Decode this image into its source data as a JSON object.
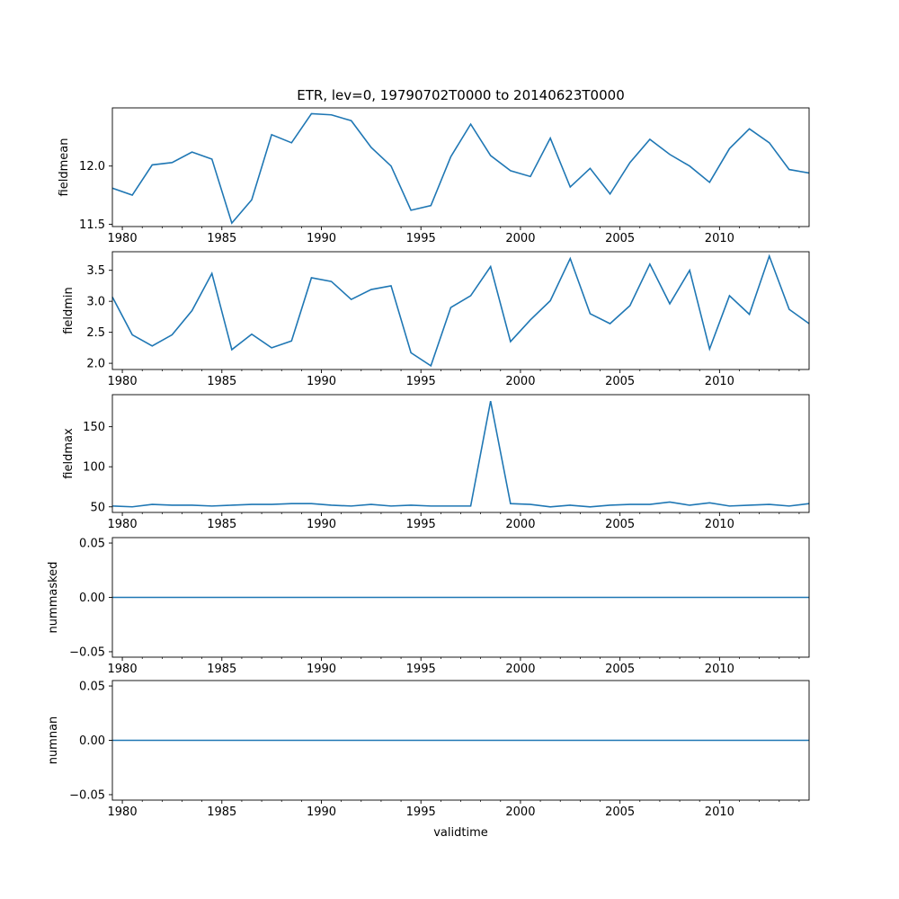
{
  "figure": {
    "title": "ETR, lev=0, 19790702T0000 to 20140623T0000",
    "xlabel": "validtime"
  },
  "chart_data": [
    {
      "type": "line",
      "ylabel": "fieldmean",
      "color": "#1f77b4",
      "xlim": [
        1979.5,
        2014.5
      ],
      "ylim": [
        11.48,
        12.5
      ],
      "xticks": [
        1980,
        1985,
        1990,
        1995,
        2000,
        2005,
        2010
      ],
      "yticks": [
        11.5,
        12.0
      ],
      "ytick_labels": [
        "11.5",
        "12.0"
      ],
      "x": [
        1979.5,
        1980.5,
        1981.5,
        1982.5,
        1983.5,
        1984.5,
        1985.5,
        1986.5,
        1987.5,
        1988.5,
        1989.5,
        1990.5,
        1991.5,
        1992.5,
        1993.5,
        1994.5,
        1995.5,
        1996.5,
        1997.5,
        1998.5,
        1999.5,
        2000.5,
        2001.5,
        2002.5,
        2003.5,
        2004.5,
        2005.5,
        2006.5,
        2007.5,
        2008.5,
        2009.5,
        2010.5,
        2011.5,
        2012.5,
        2013.5,
        2014.5
      ],
      "values": [
        11.81,
        11.75,
        12.01,
        12.03,
        12.12,
        12.06,
        11.51,
        11.71,
        12.27,
        12.2,
        12.45,
        12.44,
        12.39,
        12.16,
        12.0,
        11.62,
        11.66,
        12.08,
        12.36,
        12.09,
        11.96,
        11.91,
        12.24,
        11.82,
        11.98,
        11.76,
        12.03,
        12.23,
        12.1,
        12.0,
        11.86,
        12.15,
        12.32,
        12.2,
        11.97,
        11.94
      ]
    },
    {
      "type": "line",
      "ylabel": "fieldmin",
      "color": "#1f77b4",
      "xlim": [
        1979.5,
        2014.5
      ],
      "ylim": [
        1.9,
        3.8
      ],
      "xticks": [
        1980,
        1985,
        1990,
        1995,
        2000,
        2005,
        2010
      ],
      "yticks": [
        2.0,
        2.5,
        3.0,
        3.5
      ],
      "ytick_labels": [
        "2.0",
        "2.5",
        "3.0",
        "3.5"
      ],
      "x": [
        1979.5,
        1980.5,
        1981.5,
        1982.5,
        1983.5,
        1984.5,
        1985.5,
        1986.5,
        1987.5,
        1988.5,
        1989.5,
        1990.5,
        1991.5,
        1992.5,
        1993.5,
        1994.5,
        1995.5,
        1996.5,
        1997.5,
        1998.5,
        1999.5,
        2000.5,
        2001.5,
        2002.5,
        2003.5,
        2004.5,
        2005.5,
        2006.5,
        2007.5,
        2008.5,
        2009.5,
        2010.5,
        2011.5,
        2012.5,
        2013.5,
        2014.5
      ],
      "values": [
        3.07,
        2.46,
        2.28,
        2.46,
        2.85,
        3.45,
        2.22,
        2.47,
        2.25,
        2.36,
        3.38,
        3.32,
        3.03,
        3.19,
        3.25,
        2.17,
        1.96,
        2.9,
        3.09,
        3.56,
        2.35,
        2.7,
        3.01,
        3.69,
        2.8,
        2.64,
        2.93,
        3.6,
        2.96,
        3.5,
        2.23,
        3.09,
        2.79,
        3.73,
        2.87,
        2.64
      ]
    },
    {
      "type": "line",
      "ylabel": "fieldmax",
      "color": "#1f77b4",
      "xlim": [
        1979.5,
        2014.5
      ],
      "ylim": [
        43,
        190
      ],
      "xticks": [
        1980,
        1985,
        1990,
        1995,
        2000,
        2005,
        2010
      ],
      "yticks": [
        50,
        100,
        150
      ],
      "ytick_labels": [
        "50",
        "100",
        "150"
      ],
      "x": [
        1979.5,
        1980.5,
        1981.5,
        1982.5,
        1983.5,
        1984.5,
        1985.5,
        1986.5,
        1987.5,
        1988.5,
        1989.5,
        1990.5,
        1991.5,
        1992.5,
        1993.5,
        1994.5,
        1995.5,
        1996.5,
        1997.5,
        1998.5,
        1999.5,
        2000.5,
        2001.5,
        2002.5,
        2003.5,
        2004.5,
        2005.5,
        2006.5,
        2007.5,
        2008.5,
        2009.5,
        2010.5,
        2011.5,
        2012.5,
        2013.5,
        2014.5
      ],
      "values": [
        51,
        50,
        53,
        52,
        52,
        51,
        52,
        53,
        53,
        54,
        54,
        52,
        51,
        53,
        51,
        52,
        51,
        51,
        51,
        182,
        54,
        53,
        50,
        52,
        50,
        52,
        53,
        53,
        56,
        52,
        55,
        51,
        52,
        53,
        51,
        54
      ]
    },
    {
      "type": "line",
      "ylabel": "nummasked",
      "color": "#1f77b4",
      "xlim": [
        1979.5,
        2014.5
      ],
      "ylim": [
        -0.055,
        0.055
      ],
      "xticks": [
        1980,
        1985,
        1990,
        1995,
        2000,
        2005,
        2010
      ],
      "yticks": [
        -0.05,
        0.0,
        0.05
      ],
      "ytick_labels": [
        "−0.05",
        "0.00",
        "0.05"
      ],
      "x": [
        1979.5,
        2014.5
      ],
      "values": [
        0,
        0
      ]
    },
    {
      "type": "line",
      "ylabel": "numnan",
      "color": "#1f77b4",
      "xlim": [
        1979.5,
        2014.5
      ],
      "ylim": [
        -0.055,
        0.055
      ],
      "xticks": [
        1980,
        1985,
        1990,
        1995,
        2000,
        2005,
        2010
      ],
      "yticks": [
        -0.05,
        0.0,
        0.05
      ],
      "ytick_labels": [
        "−0.05",
        "0.00",
        "0.05"
      ],
      "x": [
        1979.5,
        2014.5
      ],
      "values": [
        0,
        0
      ]
    }
  ]
}
